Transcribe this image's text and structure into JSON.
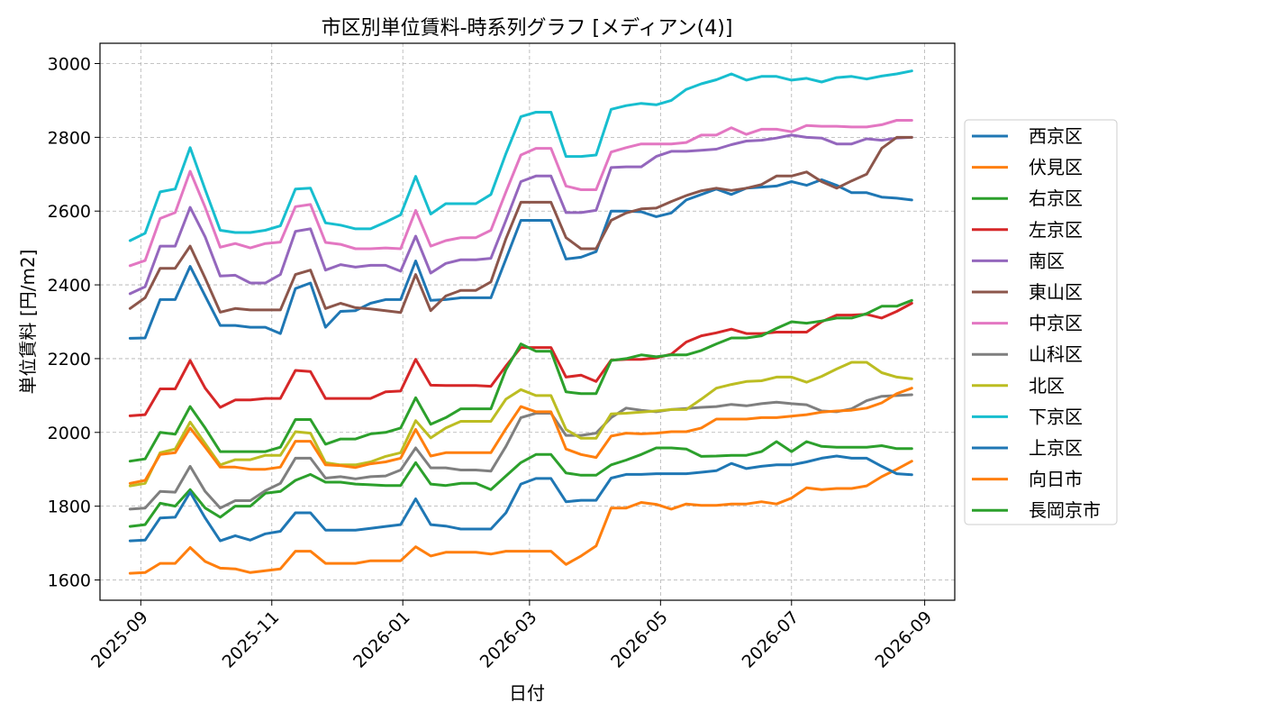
{
  "chart_data": {
    "type": "line",
    "title": "市区別単位賃料-時系列グラフ [メディアン(4)]",
    "xlabel": "日付",
    "ylabel": "単位賃料 [円/m2]",
    "xlim": [
      "2025-08-13",
      "2026-09-15"
    ],
    "ylim": [
      1545,
      3055
    ],
    "grid": true,
    "legend_position": "right",
    "x_ticks": [
      {
        "date": "2025-09-01",
        "label": "2025-09"
      },
      {
        "date": "2025-11-01",
        "label": "2025-11"
      },
      {
        "date": "2026-01-01",
        "label": "2026-01"
      },
      {
        "date": "2026-03-01",
        "label": "2026-03"
      },
      {
        "date": "2026-05-01",
        "label": "2026-05"
      },
      {
        "date": "2026-07-01",
        "label": "2026-07"
      },
      {
        "date": "2026-09-01",
        "label": "2026-09"
      }
    ],
    "y_ticks": [
      {
        "value": 1600,
        "label": "1600"
      },
      {
        "value": 1800,
        "label": "1800"
      },
      {
        "value": 2000,
        "label": "2000"
      },
      {
        "value": 2200,
        "label": "2200"
      },
      {
        "value": 2400,
        "label": "2400"
      },
      {
        "value": 2600,
        "label": "2600"
      },
      {
        "value": 2800,
        "label": "2800"
      },
      {
        "value": 3000,
        "label": "3000"
      }
    ],
    "x": [
      "2025-08-27",
      "2025-09-03",
      "2025-09-10",
      "2025-09-17",
      "2025-09-24",
      "2025-10-01",
      "2025-10-08",
      "2025-10-15",
      "2025-10-22",
      "2025-10-29",
      "2025-11-05",
      "2025-11-12",
      "2025-11-19",
      "2025-11-26",
      "2025-12-03",
      "2025-12-10",
      "2025-12-17",
      "2025-12-24",
      "2025-12-31",
      "2026-01-07",
      "2026-01-14",
      "2026-01-21",
      "2026-01-28",
      "2026-02-04",
      "2026-02-11",
      "2026-02-18",
      "2026-02-25",
      "2026-03-04",
      "2026-03-11",
      "2026-03-18",
      "2026-03-25",
      "2026-04-01",
      "2026-04-08",
      "2026-04-15",
      "2026-04-22",
      "2026-04-29",
      "2026-05-06",
      "2026-05-13",
      "2026-05-20",
      "2026-05-27",
      "2026-06-03",
      "2026-06-10",
      "2026-06-17",
      "2026-06-24",
      "2026-07-01",
      "2026-07-08",
      "2026-07-15",
      "2026-07-22",
      "2026-07-29",
      "2026-08-05",
      "2026-08-12",
      "2026-08-19",
      "2026-08-26"
    ],
    "series": [
      {
        "name": "西京区",
        "color": "#1f77b4",
        "values": [
          2255,
          2256,
          2360,
          2360,
          2450,
          2370,
          2290,
          2290,
          2285,
          2285,
          2268,
          2390,
          2405,
          2285,
          2328,
          2330,
          2350,
          2360,
          2360,
          2465,
          2358,
          2360,
          2365,
          2365,
          2365,
          2470,
          2575,
          2575,
          2575,
          2470,
          2475,
          2490,
          2600,
          2600,
          2598,
          2585,
          2595,
          2630,
          2645,
          2660,
          2645,
          2662,
          2665,
          2668,
          2680,
          2670,
          2685,
          2670,
          2650,
          2650,
          2638,
          2635,
          2630
        ]
      },
      {
        "name": "伏見区",
        "color": "#ff7f0e",
        "values": [
          1618,
          1620,
          1645,
          1645,
          1688,
          1650,
          1632,
          1630,
          1620,
          1625,
          1630,
          1678,
          1678,
          1645,
          1645,
          1645,
          1652,
          1652,
          1652,
          1690,
          1665,
          1675,
          1675,
          1675,
          1670,
          1678,
          1678,
          1678,
          1678,
          1642,
          1665,
          1692,
          1795,
          1795,
          1810,
          1805,
          1792,
          1806,
          1802,
          1802,
          1806,
          1806,
          1812,
          1806,
          1822,
          1850,
          1845,
          1848,
          1848,
          1855,
          1880,
          1900,
          1922
        ]
      },
      {
        "name": "右京区",
        "color": "#2ca02c",
        "values": [
          1745,
          1750,
          1808,
          1800,
          1845,
          1795,
          1770,
          1800,
          1800,
          1835,
          1840,
          1870,
          1886,
          1865,
          1865,
          1860,
          1858,
          1856,
          1856,
          1918,
          1860,
          1856,
          1862,
          1862,
          1845,
          1882,
          1918,
          1940,
          1940,
          1890,
          1884,
          1884,
          1912,
          1925,
          1940,
          1958,
          1958,
          1955,
          1935,
          1936,
          1938,
          1938,
          1948,
          1975,
          1948,
          1975,
          1962,
          1960,
          1960,
          1960,
          1964,
          1956,
          1956
        ]
      },
      {
        "name": "左京区",
        "color": "#d62728",
        "values": [
          2045,
          2048,
          2118,
          2118,
          2195,
          2120,
          2068,
          2088,
          2088,
          2092,
          2092,
          2168,
          2165,
          2092,
          2092,
          2092,
          2092,
          2110,
          2112,
          2198,
          2128,
          2127,
          2127,
          2127,
          2125,
          2180,
          2230,
          2230,
          2230,
          2150,
          2155,
          2138,
          2196,
          2198,
          2198,
          2202,
          2212,
          2245,
          2262,
          2270,
          2280,
          2268,
          2268,
          2272,
          2272,
          2272,
          2300,
          2318,
          2318,
          2320,
          2310,
          2328,
          2350
        ]
      },
      {
        "name": "南区",
        "color": "#9467bd",
        "values": [
          2376,
          2395,
          2505,
          2505,
          2610,
          2530,
          2424,
          2426,
          2405,
          2405,
          2428,
          2545,
          2552,
          2440,
          2455,
          2448,
          2453,
          2453,
          2437,
          2532,
          2432,
          2458,
          2468,
          2468,
          2472,
          2575,
          2680,
          2695,
          2695,
          2596,
          2596,
          2602,
          2718,
          2720,
          2720,
          2748,
          2762,
          2762,
          2765,
          2768,
          2780,
          2790,
          2792,
          2798,
          2806,
          2800,
          2798,
          2782,
          2782,
          2796,
          2792,
          2798,
          2800
        ]
      },
      {
        "name": "東山区",
        "color": "#8c564b",
        "values": [
          2336,
          2365,
          2445,
          2445,
          2505,
          2418,
          2326,
          2336,
          2332,
          2332,
          2332,
          2428,
          2440,
          2336,
          2350,
          2338,
          2335,
          2330,
          2325,
          2428,
          2330,
          2370,
          2385,
          2385,
          2408,
          2525,
          2624,
          2624,
          2624,
          2528,
          2498,
          2498,
          2575,
          2595,
          2606,
          2608,
          2626,
          2642,
          2655,
          2662,
          2656,
          2662,
          2672,
          2695,
          2695,
          2706,
          2680,
          2662,
          2682,
          2700,
          2770,
          2800,
          2800
        ]
      },
      {
        "name": "中京区",
        "color": "#e377c2",
        "values": [
          2452,
          2466,
          2580,
          2596,
          2708,
          2610,
          2502,
          2512,
          2500,
          2512,
          2516,
          2612,
          2618,
          2515,
          2510,
          2498,
          2498,
          2500,
          2498,
          2602,
          2505,
          2520,
          2528,
          2528,
          2548,
          2652,
          2752,
          2770,
          2770,
          2668,
          2658,
          2658,
          2760,
          2772,
          2782,
          2782,
          2782,
          2786,
          2806,
          2806,
          2826,
          2808,
          2822,
          2822,
          2815,
          2832,
          2830,
          2830,
          2828,
          2828,
          2834,
          2846,
          2846
        ]
      },
      {
        "name": "山科区",
        "color": "#7f7f7f",
        "values": [
          1792,
          1795,
          1840,
          1838,
          1908,
          1840,
          1795,
          1815,
          1815,
          1842,
          1862,
          1930,
          1930,
          1876,
          1880,
          1874,
          1880,
          1882,
          1898,
          1958,
          1904,
          1904,
          1898,
          1898,
          1895,
          1962,
          2040,
          2052,
          2052,
          1992,
          1992,
          1998,
          2040,
          2066,
          2060,
          2056,
          2062,
          2065,
          2068,
          2070,
          2076,
          2072,
          2078,
          2082,
          2078,
          2075,
          2058,
          2056,
          2064,
          2086,
          2098,
          2100,
          2102
        ]
      },
      {
        "name": "北区",
        "color": "#bcbd22",
        "values": [
          1855,
          1862,
          1945,
          1955,
          2028,
          1970,
          1912,
          1926,
          1926,
          1938,
          1938,
          2002,
          1998,
          1918,
          1912,
          1912,
          1920,
          1935,
          1945,
          2032,
          1985,
          2012,
          2030,
          2030,
          2030,
          2090,
          2116,
          2100,
          2100,
          2008,
          1984,
          1984,
          2050,
          2052,
          2055,
          2058,
          2062,
          2062,
          2090,
          2120,
          2130,
          2138,
          2140,
          2150,
          2150,
          2136,
          2152,
          2172,
          2190,
          2190,
          2162,
          2150,
          2145
        ]
      },
      {
        "name": "下京区",
        "color": "#17becf",
        "values": [
          2520,
          2540,
          2652,
          2660,
          2772,
          2658,
          2548,
          2542,
          2542,
          2548,
          2560,
          2660,
          2662,
          2568,
          2562,
          2552,
          2552,
          2570,
          2590,
          2694,
          2592,
          2620,
          2620,
          2620,
          2645,
          2756,
          2856,
          2868,
          2868,
          2748,
          2748,
          2752,
          2876,
          2886,
          2892,
          2888,
          2900,
          2930,
          2945,
          2956,
          2972,
          2955,
          2965,
          2965,
          2955,
          2960,
          2950,
          2962,
          2965,
          2958,
          2966,
          2972,
          2980
        ]
      },
      {
        "name": "上京区",
        "color": "#1f77b4",
        "values": [
          1706,
          1708,
          1768,
          1770,
          1838,
          1768,
          1706,
          1720,
          1708,
          1725,
          1732,
          1782,
          1782,
          1735,
          1735,
          1735,
          1740,
          1745,
          1750,
          1820,
          1750,
          1746,
          1738,
          1738,
          1738,
          1782,
          1860,
          1875,
          1875,
          1812,
          1816,
          1816,
          1876,
          1886,
          1886,
          1888,
          1888,
          1888,
          1892,
          1896,
          1916,
          1902,
          1908,
          1912,
          1912,
          1920,
          1930,
          1936,
          1930,
          1930,
          1908,
          1888,
          1885
        ]
      },
      {
        "name": "向日市",
        "color": "#ff7f0e",
        "values": [
          1862,
          1870,
          1940,
          1945,
          2012,
          1960,
          1906,
          1906,
          1900,
          1900,
          1906,
          1976,
          1976,
          1912,
          1910,
          1905,
          1915,
          1920,
          1930,
          2008,
          1936,
          1945,
          1945,
          1945,
          1945,
          2010,
          2070,
          2056,
          2056,
          1955,
          1940,
          1932,
          1990,
          1998,
          1996,
          1998,
          2002,
          2002,
          2012,
          2036,
          2036,
          2036,
          2040,
          2040,
          2044,
          2048,
          2055,
          2058,
          2060,
          2066,
          2080,
          2105,
          2120
        ]
      },
      {
        "name": "長岡京市",
        "color": "#2ca02c",
        "values": [
          1922,
          1928,
          2000,
          1995,
          2070,
          2012,
          1948,
          1948,
          1948,
          1948,
          1960,
          2035,
          2035,
          1968,
          1982,
          1982,
          1996,
          2000,
          2012,
          2094,
          2022,
          2040,
          2064,
          2064,
          2064,
          2170,
          2240,
          2220,
          2220,
          2110,
          2105,
          2105,
          2195,
          2200,
          2210,
          2205,
          2210,
          2210,
          2222,
          2240,
          2256,
          2256,
          2262,
          2282,
          2300,
          2296,
          2302,
          2310,
          2310,
          2322,
          2342,
          2342,
          2358
        ]
      }
    ]
  }
}
